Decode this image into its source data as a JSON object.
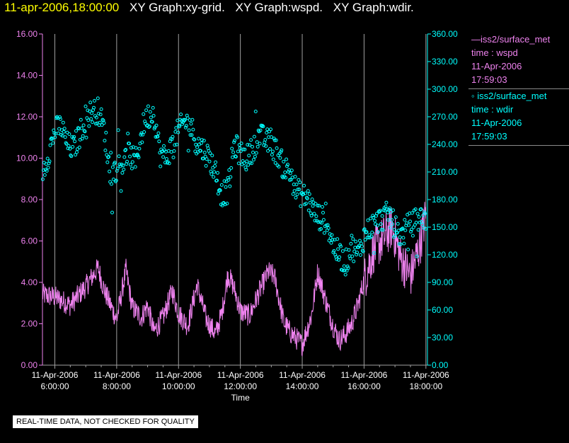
{
  "header": {
    "timestamp": "11-apr-2006,18:00:00",
    "graph_titles": [
      "XY Graph:xy-grid.",
      "XY Graph:wspd.",
      "XY Graph:wdir."
    ]
  },
  "legend": [
    {
      "line1": "—iss2/surface_met",
      "line2": "time : wspd",
      "line3": "11-Apr-2006",
      "line4": "17:59:03",
      "color": "#ee82ee"
    },
    {
      "line1": "◦ iss2/surface_met",
      "line2": "time : wdir",
      "line3": "11-Apr-2006",
      "line4": "17:59:03",
      "color": "#00ffff"
    }
  ],
  "notice": "REAL-TIME DATA, NOT CHECKED FOR QUALITY",
  "colors": {
    "wspd": "#ee82ee",
    "wdir": "#00ffff",
    "grid": "#a0a0a0",
    "axis_text": "#ffffff"
  },
  "chart_data": {
    "type": "line",
    "xlabel": "Time",
    "x_ticks": [
      {
        "hour": 6,
        "date": "11-Apr-2006",
        "time": "6:00:00"
      },
      {
        "hour": 8,
        "date": "11-Apr-2006",
        "time": "8:00:00"
      },
      {
        "hour": 10,
        "date": "11-Apr-2006",
        "time": "10:00:00"
      },
      {
        "hour": 12,
        "date": "11-Apr-2006",
        "time": "12:00:00"
      },
      {
        "hour": 14,
        "date": "11-Apr-2006",
        "time": "14:00:00"
      },
      {
        "hour": 16,
        "date": "11-Apr-2006",
        "time": "16:00:00"
      },
      {
        "hour": 18,
        "date": "11-Apr-2006",
        "time": "18:00:00"
      }
    ],
    "xlim_hours": [
      5.6,
      18.05
    ],
    "y_left": {
      "lim": [
        0,
        16
      ],
      "ticks": [
        "0.00",
        "2.00",
        "4.00",
        "6.00",
        "8.00",
        "10.00",
        "12.00",
        "14.00",
        "16.00"
      ],
      "color": "#ee82ee"
    },
    "y_right": {
      "lim": [
        0,
        360
      ],
      "ticks": [
        "0.00",
        "30.00",
        "60.00",
        "90.00",
        "120.00",
        "150.00",
        "180.00",
        "210.00",
        "240.00",
        "270.00",
        "300.00",
        "330.00",
        "360.00"
      ],
      "color": "#00ffff"
    },
    "grid": "vertical",
    "series": [
      {
        "name": "iss2/surface_met time : wspd",
        "axis": "left",
        "style": "line",
        "x": [
          5.6,
          6.0,
          6.5,
          7.0,
          7.4,
          7.6,
          8.0,
          8.3,
          8.5,
          8.8,
          9.0,
          9.2,
          9.5,
          9.8,
          10.0,
          10.3,
          10.6,
          10.9,
          11.2,
          11.4,
          11.6,
          11.8,
          12.0,
          12.3,
          12.6,
          12.9,
          13.1,
          13.4,
          13.6,
          13.8,
          14.0,
          14.3,
          14.5,
          14.8,
          15.0,
          15.2,
          15.4,
          15.6,
          15.8,
          16.0,
          16.3,
          16.6,
          16.9,
          17.2,
          17.5,
          17.8,
          18.0
        ],
        "y": [
          3.4,
          3.3,
          2.9,
          3.8,
          4.7,
          3.6,
          2.2,
          4.6,
          2.8,
          2.3,
          2.9,
          1.6,
          2.3,
          3.6,
          2.5,
          1.9,
          3.9,
          2.2,
          1.5,
          2.5,
          4.4,
          3.7,
          2.6,
          2.4,
          3.5,
          4.5,
          4.3,
          2.1,
          1.6,
          1.3,
          1.0,
          2.4,
          4.5,
          2.9,
          1.9,
          1.2,
          1.5,
          2.0,
          2.9,
          4.1,
          5.5,
          6.1,
          6.7,
          5.1,
          4.3,
          5.8,
          7.3
        ]
      },
      {
        "name": "iss2/surface_met time : wdir",
        "axis": "right",
        "style": "markers",
        "x": [
          5.6,
          5.8,
          6.0,
          6.2,
          6.4,
          6.6,
          6.8,
          7.0,
          7.2,
          7.4,
          7.6,
          7.8,
          8.0,
          8.2,
          8.4,
          8.6,
          8.8,
          8.9,
          9.0,
          9.2,
          9.4,
          9.6,
          9.8,
          10.0,
          10.2,
          10.4,
          10.6,
          10.8,
          11.0,
          11.2,
          11.4,
          11.6,
          11.8,
          12.0,
          12.2,
          12.4,
          12.6,
          12.8,
          13.0,
          13.2,
          13.4,
          13.6,
          13.8,
          14.0,
          14.2,
          14.4,
          14.6,
          14.8,
          15.0,
          15.2,
          15.4,
          15.6,
          15.8,
          16.0,
          16.2,
          16.4,
          16.6,
          16.8,
          17.0,
          17.2,
          17.4,
          17.6,
          17.8,
          18.0
        ],
        "y": [
          210,
          230,
          255,
          260,
          240,
          235,
          250,
          270,
          275,
          277,
          255,
          205,
          215,
          220,
          230,
          220,
          250,
          265,
          270,
          275,
          230,
          225,
          240,
          255,
          265,
          260,
          240,
          235,
          225,
          210,
          185,
          190,
          240,
          230,
          225,
          235,
          250,
          245,
          240,
          230,
          215,
          210,
          190,
          185,
          180,
          165,
          160,
          155,
          130,
          120,
          110,
          130,
          120,
          140,
          150,
          155,
          160,
          165,
          150,
          140,
          150,
          155,
          160,
          160
        ]
      }
    ]
  }
}
